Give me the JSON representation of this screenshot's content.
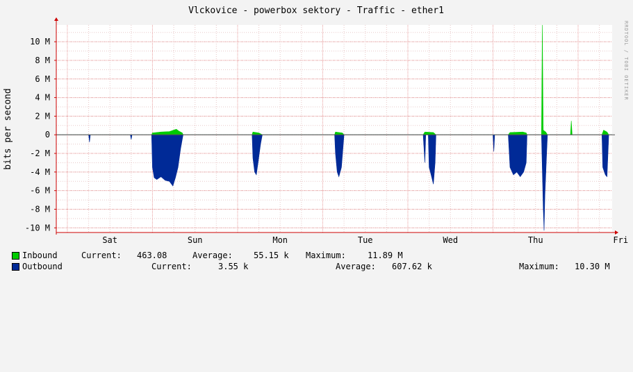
{
  "watermark": "RRDTOOL / TOBI OETIKER",
  "colors": {
    "inbound": "#00cc00",
    "outbound": "#002a97",
    "background": "#f3f3f3",
    "plot_background": "#ffffff",
    "grid_minor": "#e8c8c8",
    "grid_major": "#e89a9a",
    "axis": "#cc0000"
  },
  "chart_data": {
    "type": "area",
    "title": "Vlckovice - powerbox sektory - Traffic - ether1",
    "ylabel": "bits per second",
    "xlabel": "",
    "ylim": [
      -10.5,
      11.8
    ],
    "y_unit": "M",
    "y_ticks": [
      10,
      8,
      6,
      4,
      2,
      0,
      -2,
      -4,
      -6,
      -8,
      -10
    ],
    "y_tick_labels": [
      "10 M",
      "8 M",
      "6 M",
      "4 M",
      "2 M",
      "0",
      "-2 M",
      "-4 M",
      "-6 M",
      "-8 M",
      "-10 M"
    ],
    "x_days": [
      "Sat",
      "Sun",
      "Mon",
      "Tue",
      "Wed",
      "Thu",
      "Fri"
    ],
    "x_unit": "days since start of Sat",
    "xlim": [
      -0.13,
      6.4
    ],
    "grid": true,
    "legend_position": "bottom",
    "series": [
      {
        "name": "Inbound",
        "color": "#00cc00",
        "points": [
          [
            -0.13,
            0
          ],
          [
            0.99,
            0
          ],
          [
            1.0,
            0.2
          ],
          [
            1.1,
            0.3
          ],
          [
            1.2,
            0.35
          ],
          [
            1.28,
            0.6
          ],
          [
            1.31,
            0.4
          ],
          [
            1.35,
            0.2
          ],
          [
            1.36,
            0
          ],
          [
            2.17,
            0
          ],
          [
            2.18,
            0.3
          ],
          [
            2.25,
            0.2
          ],
          [
            2.29,
            0
          ],
          [
            3.14,
            0
          ],
          [
            3.15,
            0.3
          ],
          [
            3.23,
            0.2
          ],
          [
            3.25,
            0
          ],
          [
            4.18,
            0
          ],
          [
            4.2,
            0.3
          ],
          [
            4.3,
            0.25
          ],
          [
            4.33,
            0
          ],
          [
            5.18,
            0
          ],
          [
            5.2,
            0.25
          ],
          [
            5.35,
            0.3
          ],
          [
            5.39,
            0.2
          ],
          [
            5.4,
            0
          ],
          [
            5.57,
            0
          ],
          [
            5.58,
            11.8
          ],
          [
            5.59,
            0.5
          ],
          [
            5.62,
            0.3
          ],
          [
            5.64,
            0
          ],
          [
            5.91,
            0
          ],
          [
            5.92,
            1.5
          ],
          [
            5.93,
            0
          ],
          [
            6.28,
            0
          ],
          [
            6.3,
            0.5
          ],
          [
            6.34,
            0.3
          ],
          [
            6.36,
            0
          ],
          [
            6.4,
            0
          ]
        ]
      },
      {
        "name": "Outbound",
        "color": "#002a97",
        "summary": {
          "current": "3.55 k",
          "average": "607.62 k",
          "maximum": "10.30 M"
        },
        "points": [
          [
            -0.13,
            0
          ],
          [
            0.25,
            0
          ],
          [
            0.26,
            -0.8
          ],
          [
            0.27,
            0
          ],
          [
            0.74,
            0
          ],
          [
            0.75,
            -0.5
          ],
          [
            0.76,
            0
          ],
          [
            0.99,
            0
          ],
          [
            1.0,
            -3.5
          ],
          [
            1.02,
            -4.6
          ],
          [
            1.05,
            -4.8
          ],
          [
            1.1,
            -4.5
          ],
          [
            1.15,
            -4.9
          ],
          [
            1.2,
            -5.0
          ],
          [
            1.24,
            -5.5
          ],
          [
            1.27,
            -4.6
          ],
          [
            1.3,
            -3.5
          ],
          [
            1.33,
            -1.5
          ],
          [
            1.36,
            0
          ],
          [
            2.17,
            0
          ],
          [
            2.18,
            -2.5
          ],
          [
            2.2,
            -4.0
          ],
          [
            2.22,
            -4.3
          ],
          [
            2.24,
            -3.0
          ],
          [
            2.27,
            -1.0
          ],
          [
            2.29,
            0
          ],
          [
            3.14,
            0
          ],
          [
            3.15,
            -2.0
          ],
          [
            3.17,
            -4.0
          ],
          [
            3.19,
            -4.5
          ],
          [
            3.22,
            -3.5
          ],
          [
            3.25,
            0
          ],
          [
            4.18,
            0
          ],
          [
            4.2,
            -3.0
          ],
          [
            4.21,
            0
          ],
          [
            4.24,
            0
          ],
          [
            4.25,
            -3.5
          ],
          [
            4.27,
            -4.2
          ],
          [
            4.3,
            -5.3
          ],
          [
            4.32,
            -3.0
          ],
          [
            4.33,
            0
          ],
          [
            5.0,
            0
          ],
          [
            5.01,
            -1.8
          ],
          [
            5.02,
            0
          ],
          [
            5.18,
            0
          ],
          [
            5.2,
            -3.5
          ],
          [
            5.24,
            -4.3
          ],
          [
            5.28,
            -4.0
          ],
          [
            5.32,
            -4.5
          ],
          [
            5.36,
            -4.0
          ],
          [
            5.39,
            -3.0
          ],
          [
            5.4,
            0
          ],
          [
            5.57,
            0
          ],
          [
            5.59,
            -7.8
          ],
          [
            5.6,
            -10.3
          ],
          [
            5.61,
            -6.5
          ],
          [
            5.63,
            -2.0
          ],
          [
            5.64,
            0
          ],
          [
            6.28,
            0
          ],
          [
            6.29,
            -3.5
          ],
          [
            6.32,
            -4.3
          ],
          [
            6.34,
            -4.5
          ],
          [
            6.36,
            0
          ],
          [
            6.4,
            0
          ]
        ]
      }
    ]
  },
  "legend": [
    {
      "name": "Inbound",
      "color": "#00cc00",
      "current_label": "Current:",
      "current": "463.08",
      "average_label": "Average:",
      "average": "55.15 k",
      "maximum_label": "Maximum:",
      "maximum": "11.89 M"
    },
    {
      "name": "Outbound",
      "color": "#002a97",
      "current_label": "Current:",
      "current": "3.55 k",
      "average_label": "Average:",
      "average": "607.62 k",
      "maximum_label": "Maximum:",
      "maximum": "10.30 M"
    }
  ]
}
